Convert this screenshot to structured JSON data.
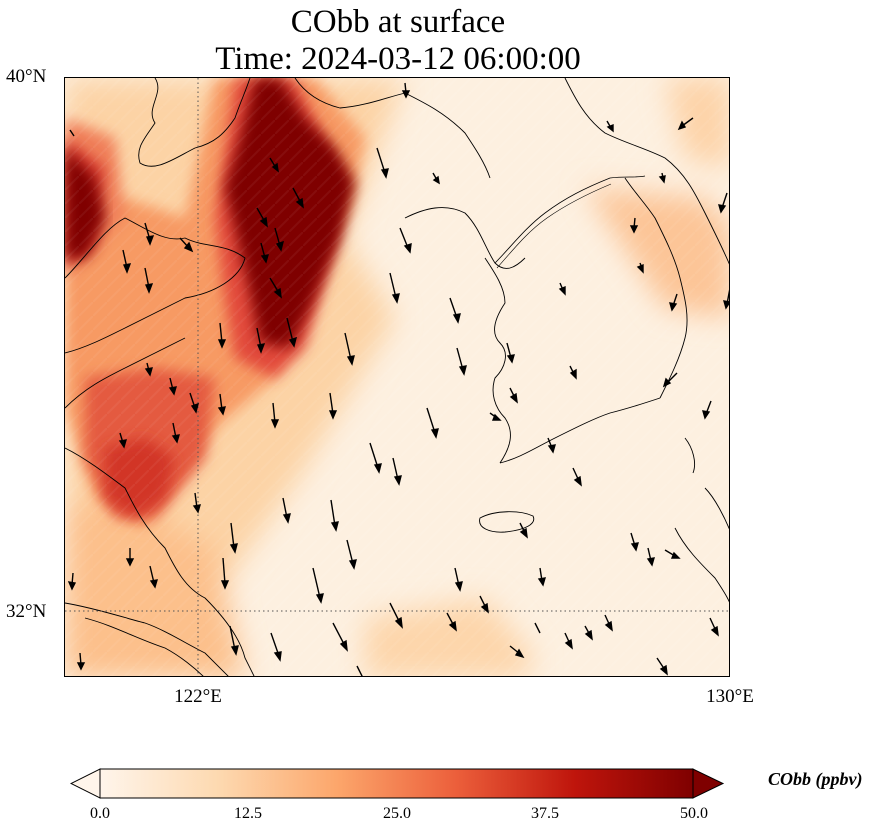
{
  "title": {
    "line1": "CObb at surface",
    "line2": "Time: 2024-03-12 06:00:00"
  },
  "map": {
    "lon_range": [
      120,
      130
    ],
    "lat_range": [
      31,
      40
    ],
    "lat_labels": [
      "40°N",
      "32°N"
    ],
    "lon_labels": [
      "122°E",
      "130°E"
    ],
    "gridlines": {
      "lat": 32,
      "lon": 122
    }
  },
  "colorbar": {
    "label": "CObb (ppbv)",
    "ticks": [
      "0.0",
      "12.5",
      "25.0",
      "37.5",
      "50.0"
    ],
    "range": [
      0,
      50
    ],
    "extend": "both",
    "colors": [
      "#fff5eb",
      "#fdd9b0",
      "#fca66b",
      "#e7543b",
      "#b00b0b",
      "#7f0000"
    ]
  }
}
